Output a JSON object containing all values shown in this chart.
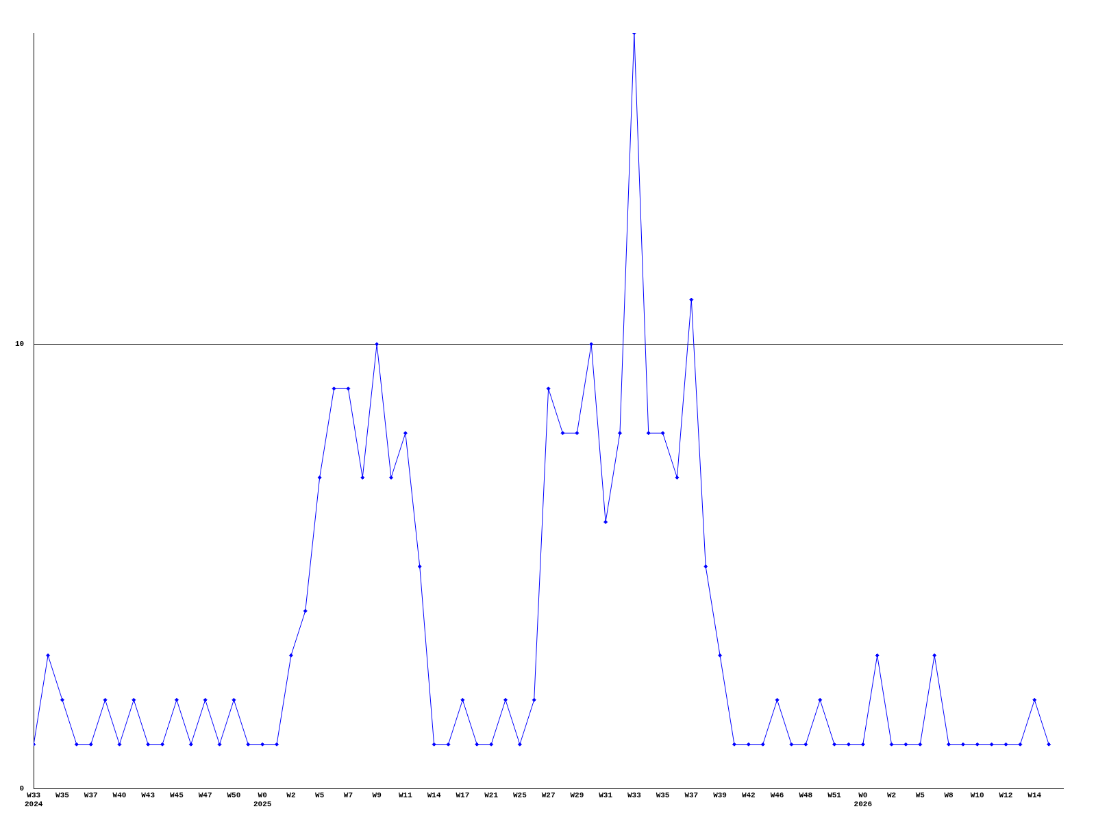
{
  "chart_data": {
    "type": "line",
    "categories": [
      "W33\n2024",
      null,
      "W35",
      null,
      "W37",
      null,
      "W40",
      null,
      "W43",
      null,
      "W45",
      null,
      "W47",
      null,
      "W50",
      null,
      "W0\n2025",
      null,
      "W2",
      null,
      "W5",
      null,
      "W7",
      null,
      "W9",
      null,
      "W11",
      null,
      "W14",
      null,
      "W17",
      null,
      "W21",
      null,
      "W25",
      null,
      "W27",
      null,
      "W29",
      null,
      "W31",
      null,
      "W33",
      null,
      "W35",
      null,
      "W37",
      null,
      "W39",
      null,
      "W42",
      null,
      "W46",
      null,
      "W48",
      null,
      "W51",
      null,
      "W0\n2026",
      null,
      "W2",
      null,
      "W5",
      null,
      "W8",
      null,
      "W10",
      null,
      "W12",
      null,
      "W14",
      null
    ],
    "series": [
      {
        "color": "#0000ff",
        "values": [
          1,
          3,
          2,
          1,
          1,
          2,
          1,
          2,
          1,
          1,
          2,
          1,
          2,
          1,
          2,
          1,
          1,
          1,
          3,
          4,
          7,
          9,
          9,
          7,
          10,
          7,
          8,
          5,
          1,
          1,
          2,
          1,
          1,
          2,
          1,
          2,
          9,
          8,
          8,
          10,
          6,
          8,
          17,
          8,
          8,
          7,
          11,
          5,
          3,
          1,
          1,
          1,
          2,
          1,
          1,
          2,
          1,
          1,
          1,
          3,
          1,
          1,
          1,
          3,
          1,
          1,
          1,
          1,
          1,
          1,
          2,
          1
        ]
      }
    ],
    "ylim": [
      0,
      17
    ],
    "yticks": [
      0,
      10
    ],
    "grid": "y",
    "marker": "diamond",
    "line_style": "solid",
    "legend": false
  }
}
